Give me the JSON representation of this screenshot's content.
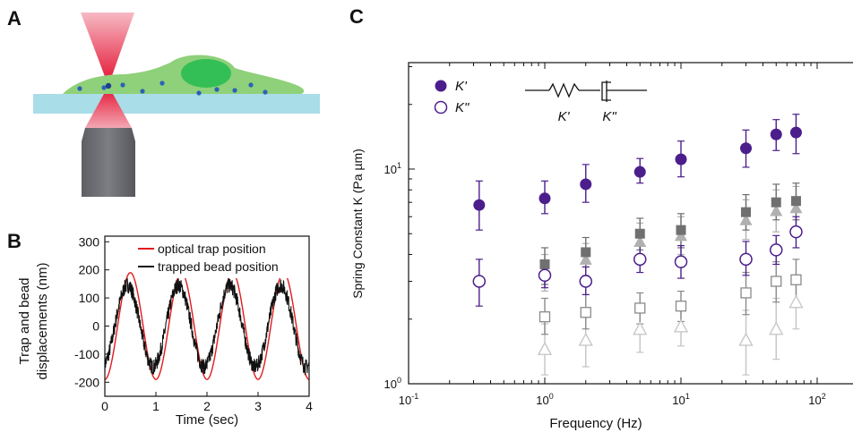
{
  "figure": {
    "panels": {
      "a": {
        "letter": "A"
      },
      "b": {
        "letter": "B"
      },
      "c": {
        "letter": "C"
      }
    }
  },
  "chart_data": [
    {
      "type": "line",
      "panel": "B",
      "xlabel": "Time (sec)",
      "ylabel_line1": "Trap and bead",
      "ylabel_line2": "displacements (nm)",
      "xlim": [
        0,
        4
      ],
      "ylim": [
        -250,
        320
      ],
      "x_ticks": [
        0,
        1,
        2,
        3,
        4
      ],
      "y_ticks": [
        -200,
        -100,
        0,
        100,
        200,
        300
      ],
      "series": [
        {
          "name": "optical trap position",
          "color": "#e31a1c",
          "amplitude": 190,
          "frequency_hz": 1.0,
          "phase_deg": -90
        },
        {
          "name": "trapped bead position",
          "color": "#111111",
          "amplitude": 145,
          "frequency_hz": 1.0,
          "phase_deg": -70
        }
      ]
    },
    {
      "type": "scatter",
      "panel": "C",
      "xlabel": "Frequency (Hz)",
      "ylabel": "Spring Constant K (Pa µm)",
      "xscale": "log",
      "yscale": "log",
      "xlim": [
        0.1,
        180
      ],
      "ylim": [
        1,
        30
      ],
      "x_ticks": [
        {
          "value": 0.1,
          "base": "10",
          "exp": "-1"
        },
        {
          "value": 1,
          "base": "10",
          "exp": "0"
        },
        {
          "value": 10,
          "base": "10",
          "exp": "1"
        },
        {
          "value": 100,
          "base": "10",
          "exp": "2"
        }
      ],
      "y_ticks": [
        {
          "value": 1,
          "base": "10",
          "exp": "0"
        },
        {
          "value": 10,
          "base": "10",
          "exp": "1"
        }
      ],
      "legend": [
        {
          "label": "K'",
          "marker": "filled-circle",
          "color": "#4b1e8c"
        },
        {
          "label": "K\"",
          "marker": "open-circle",
          "color": "#4b1e8c"
        }
      ],
      "inset_labels": {
        "spring": "K'",
        "dashpot": "K\""
      },
      "series": [
        {
          "name": "K'",
          "marker": "filled-circle",
          "color": "#4b1e8c",
          "points": [
            {
              "x": 0.33,
              "y": 6.8,
              "lo": 5.2,
              "hi": 8.8
            },
            {
              "x": 1,
              "y": 7.3,
              "lo": 6.2,
              "hi": 8.8
            },
            {
              "x": 2,
              "y": 8.5,
              "lo": 7.0,
              "hi": 10.5
            },
            {
              "x": 5,
              "y": 9.7,
              "lo": 8.6,
              "hi": 11.2
            },
            {
              "x": 10,
              "y": 11.1,
              "lo": 9.2,
              "hi": 13.5
            },
            {
              "x": 30,
              "y": 12.5,
              "lo": 10.2,
              "hi": 15.2
            },
            {
              "x": 50,
              "y": 14.5,
              "lo": 12.2,
              "hi": 17.0
            },
            {
              "x": 70,
              "y": 14.8,
              "lo": 11.8,
              "hi": 18.0
            }
          ]
        },
        {
          "name": "K\"",
          "marker": "open-circle",
          "color": "#4b1e8c",
          "points": [
            {
              "x": 0.33,
              "y": 3.0,
              "lo": 2.3,
              "hi": 3.8
            },
            {
              "x": 1,
              "y": 3.2,
              "lo": 2.8,
              "hi": 3.6
            },
            {
              "x": 2,
              "y": 3.0,
              "lo": 2.6,
              "hi": 3.5
            },
            {
              "x": 5,
              "y": 3.8,
              "lo": 3.3,
              "hi": 4.4
            },
            {
              "x": 10,
              "y": 3.7,
              "lo": 3.1,
              "hi": 4.4
            },
            {
              "x": 30,
              "y": 3.8,
              "lo": 3.2,
              "hi": 4.6
            },
            {
              "x": 50,
              "y": 4.2,
              "lo": 3.6,
              "hi": 4.9
            },
            {
              "x": 70,
              "y": 5.1,
              "lo": 4.3,
              "hi": 6.0
            }
          ]
        },
        {
          "name": "",
          "marker": "filled-square",
          "color": "#707070",
          "points": [
            {
              "x": 1,
              "y": 3.6,
              "lo": 2.9,
              "hi": 4.3
            },
            {
              "x": 2,
              "y": 4.1,
              "lo": 3.5,
              "hi": 4.8
            },
            {
              "x": 5,
              "y": 5.0,
              "lo": 4.2,
              "hi": 5.9
            },
            {
              "x": 10,
              "y": 5.2,
              "lo": 4.3,
              "hi": 6.2
            },
            {
              "x": 30,
              "y": 6.3,
              "lo": 5.2,
              "hi": 7.6
            },
            {
              "x": 50,
              "y": 7.0,
              "lo": 5.8,
              "hi": 8.5
            },
            {
              "x": 70,
              "y": 7.1,
              "lo": 5.8,
              "hi": 8.6
            }
          ]
        },
        {
          "name": "",
          "marker": "filled-triangle",
          "color": "#b0b0b0",
          "points": [
            {
              "x": 1,
              "y": 3.3,
              "lo": 2.7,
              "hi": 4.0
            },
            {
              "x": 2,
              "y": 3.8,
              "lo": 3.2,
              "hi": 4.5
            },
            {
              "x": 5,
              "y": 4.6,
              "lo": 3.8,
              "hi": 5.6
            },
            {
              "x": 10,
              "y": 4.9,
              "lo": 4.0,
              "hi": 6.0
            },
            {
              "x": 30,
              "y": 5.8,
              "lo": 4.7,
              "hi": 7.2
            },
            {
              "x": 50,
              "y": 6.4,
              "lo": 5.1,
              "hi": 8.0
            },
            {
              "x": 70,
              "y": 6.6,
              "lo": 5.2,
              "hi": 8.3
            }
          ]
        },
        {
          "name": "",
          "marker": "open-square",
          "color": "#8a8a8a",
          "points": [
            {
              "x": 1,
              "y": 2.05,
              "lo": 1.7,
              "hi": 2.5
            },
            {
              "x": 2,
              "y": 2.15,
              "lo": 1.8,
              "hi": 2.6
            },
            {
              "x": 5,
              "y": 2.25,
              "lo": 1.9,
              "hi": 2.65
            },
            {
              "x": 10,
              "y": 2.3,
              "lo": 1.95,
              "hi": 2.7
            },
            {
              "x": 30,
              "y": 2.65,
              "lo": 2.1,
              "hi": 3.3
            },
            {
              "x": 50,
              "y": 3.0,
              "lo": 2.4,
              "hi": 3.7
            },
            {
              "x": 70,
              "y": 3.05,
              "lo": 2.4,
              "hi": 3.8
            }
          ]
        },
        {
          "name": "",
          "marker": "open-triangle",
          "color": "#c4c4c4",
          "points": [
            {
              "x": 1,
              "y": 1.45,
              "lo": 1.1,
              "hi": 1.9
            },
            {
              "x": 2,
              "y": 1.6,
              "lo": 1.2,
              "hi": 2.1
            },
            {
              "x": 5,
              "y": 1.8,
              "lo": 1.4,
              "hi": 2.3
            },
            {
              "x": 10,
              "y": 1.85,
              "lo": 1.5,
              "hi": 2.3
            },
            {
              "x": 30,
              "y": 1.6,
              "lo": 1.1,
              "hi": 2.2
            },
            {
              "x": 50,
              "y": 1.8,
              "lo": 1.3,
              "hi": 2.5
            },
            {
              "x": 70,
              "y": 2.4,
              "lo": 1.8,
              "hi": 3.1
            }
          ]
        }
      ]
    }
  ]
}
